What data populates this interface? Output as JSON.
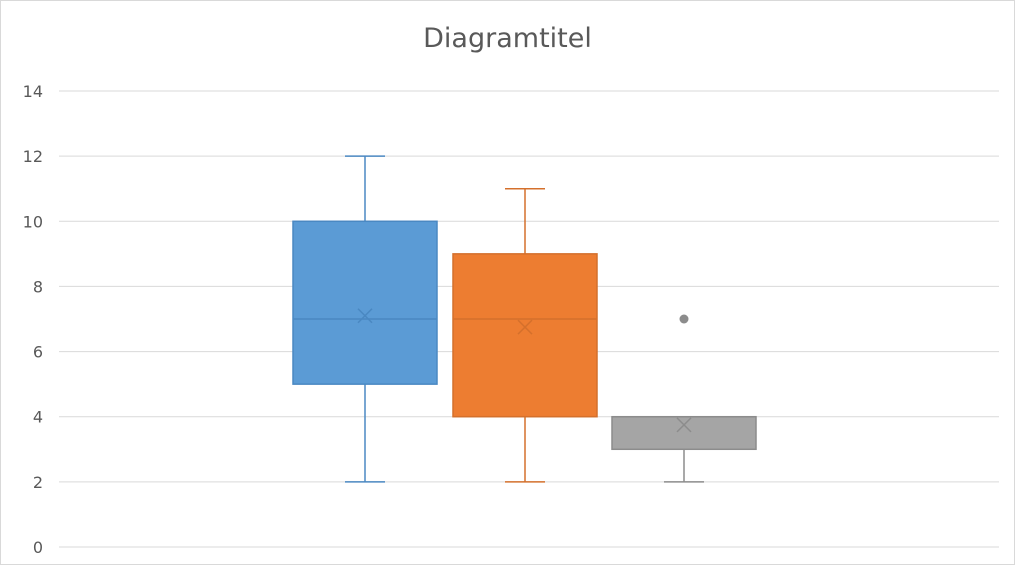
{
  "chart_data": {
    "type": "box",
    "title": "Diagramtitel",
    "xlabel": "",
    "ylabel": "",
    "ylim": [
      0,
      14
    ],
    "yticks": [
      0,
      2,
      4,
      6,
      8,
      10,
      12,
      14
    ],
    "grid": true,
    "legend": "none",
    "series": [
      {
        "color": "#5b9bd5",
        "min": 2,
        "q1": 5,
        "median": 7,
        "q3": 10,
        "max": 12,
        "mean": 7.1,
        "outliers": []
      },
      {
        "color": "#ed7d31",
        "min": 2,
        "q1": 4,
        "median": 7,
        "q3": 9,
        "max": 11,
        "mean": 6.75,
        "outliers": []
      },
      {
        "color": "#a5a5a5",
        "min": 2,
        "q1": 3,
        "median": 4,
        "q3": 4,
        "max": 4,
        "mean": 3.75,
        "outliers": [
          7
        ]
      }
    ],
    "colors": {
      "grid": "#d9d9d9",
      "text": "#595959"
    }
  }
}
